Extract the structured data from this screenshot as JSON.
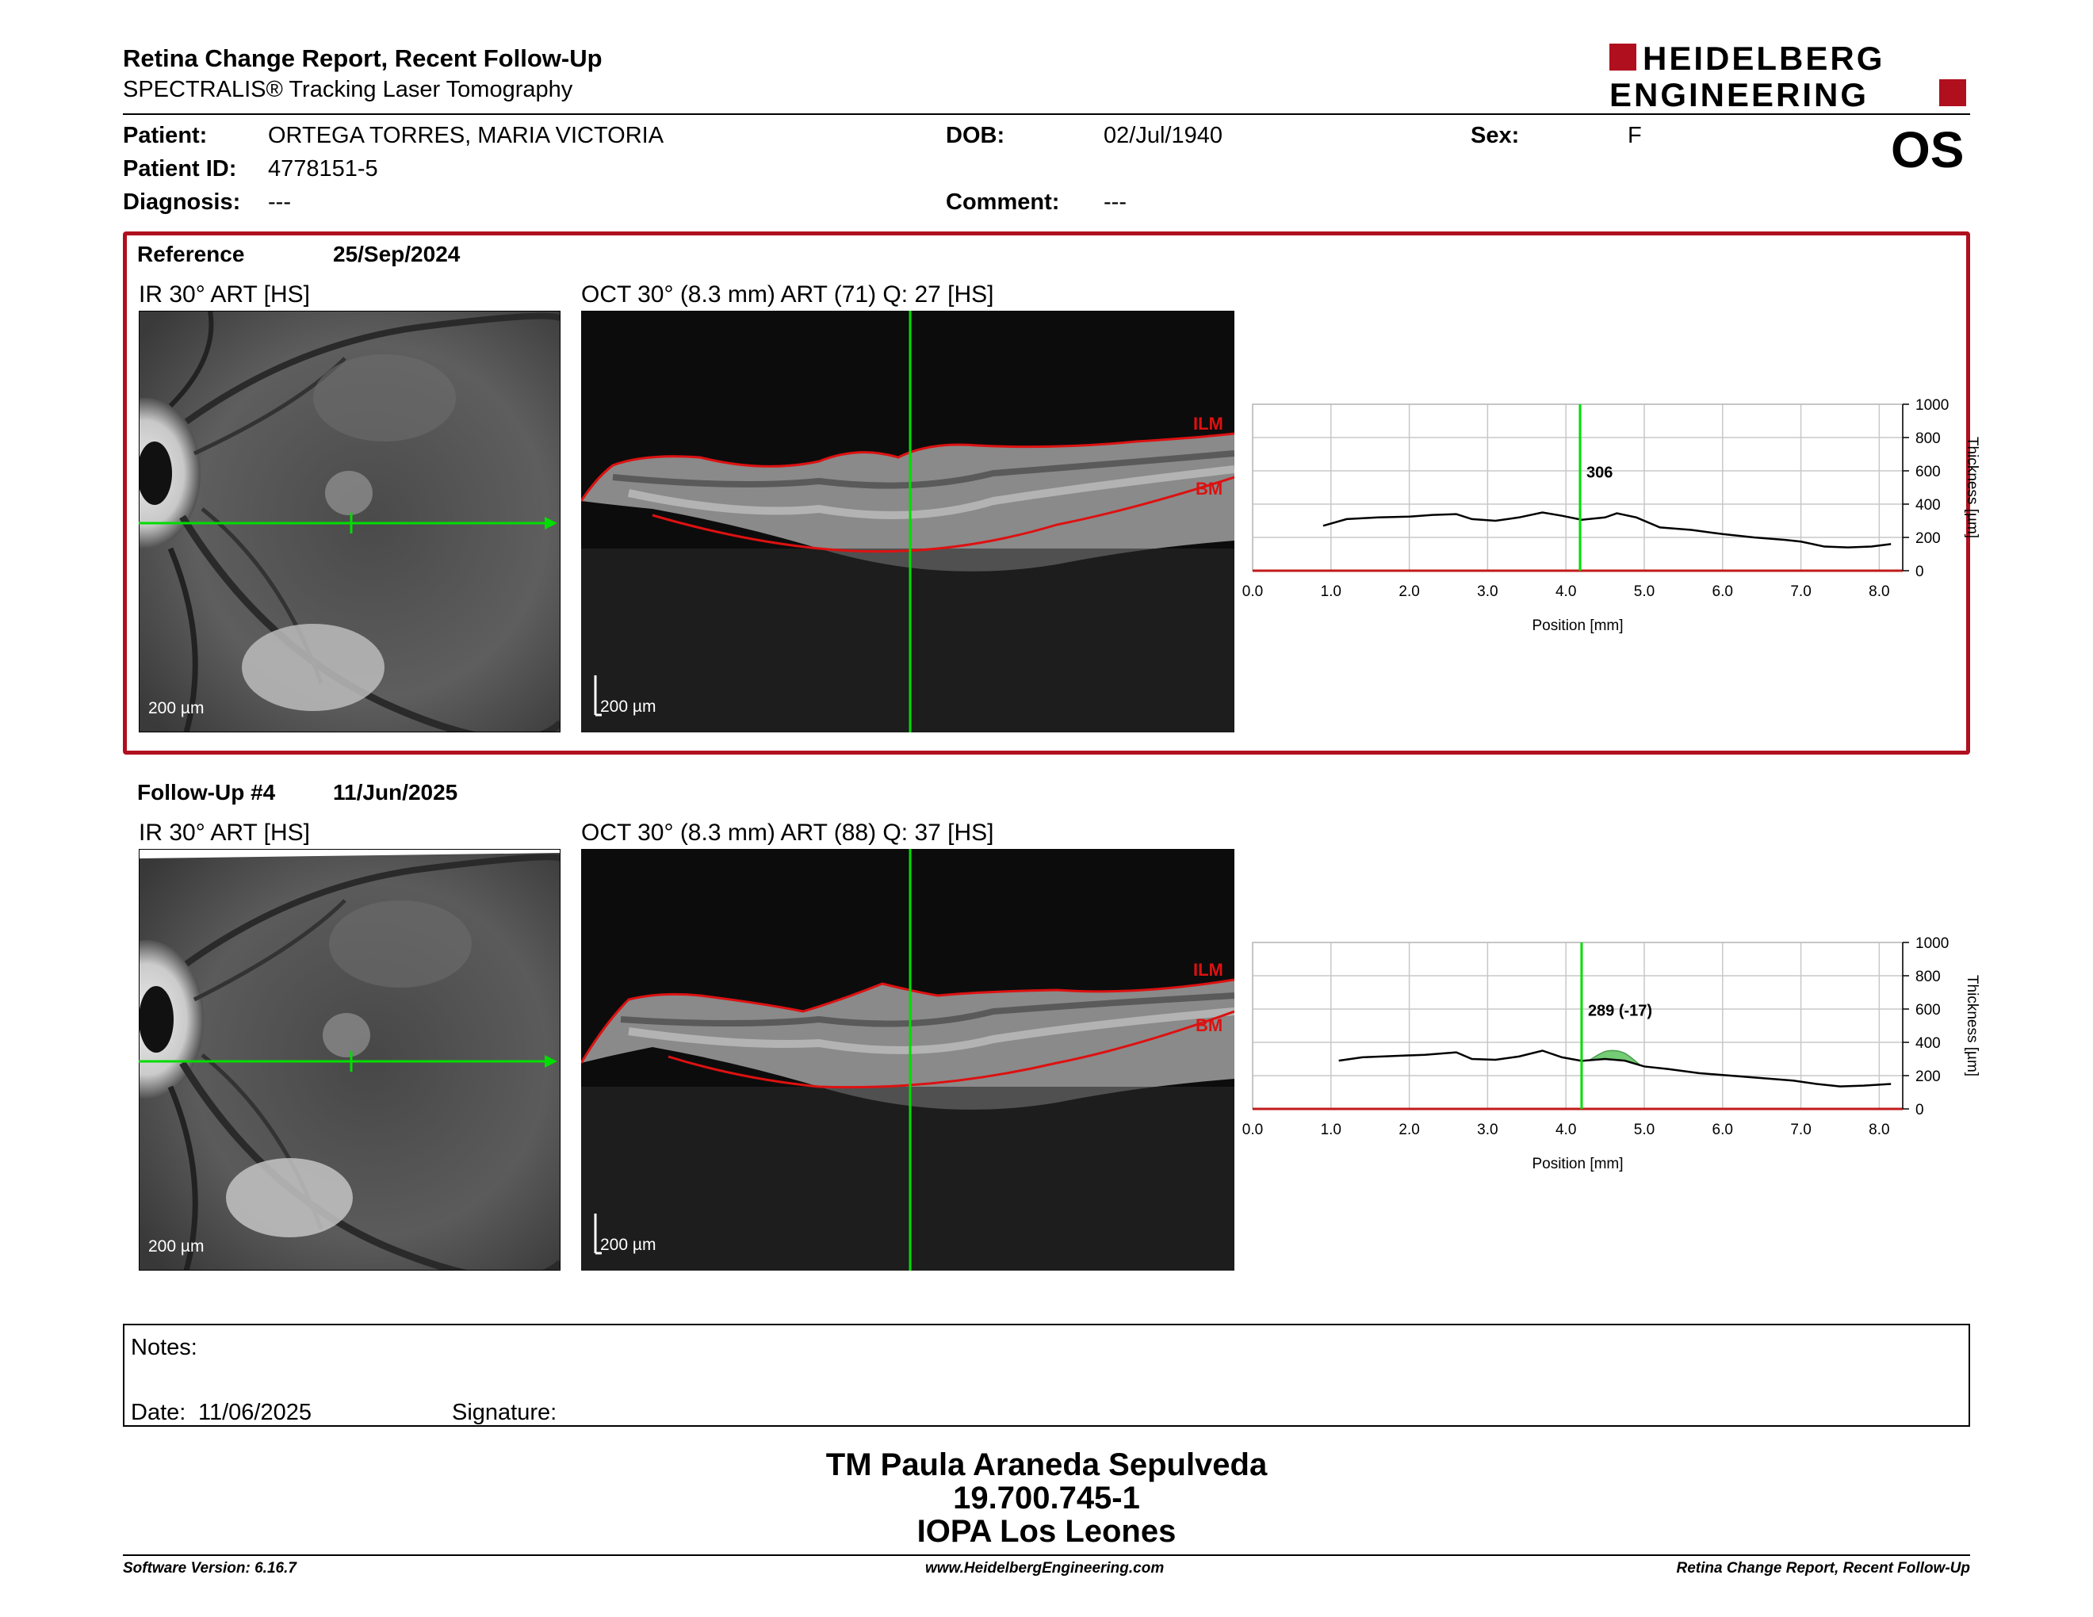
{
  "header": {
    "title": "Retina Change Report, Recent Follow-Up",
    "subtitle": "SPECTRALIS® Tracking Laser Tomography",
    "logo_line1": "HEIDELBERG",
    "logo_line2": "ENGINEERING"
  },
  "patient": {
    "patient_label": "Patient:",
    "patient_name": "ORTEGA TORRES, MARIA VICTORIA",
    "id_label": "Patient ID:",
    "id_value": "4778151-5",
    "diagnosis_label": "Diagnosis:",
    "diagnosis_value": "---",
    "dob_label": "DOB:",
    "dob_value": "02/Jul/1940",
    "comment_label": "Comment:",
    "comment_value": "---",
    "sex_label": "Sex:",
    "sex_value": "F",
    "eye": "OS"
  },
  "reference": {
    "name": "Reference",
    "date": "25/Sep/2024",
    "ir_label": "IR 30° ART [HS]",
    "oct_label": "OCT 30° (8.3 mm) ART (71) Q: 27 [HS]",
    "ir_scale": "200 µm",
    "oct_scale": "200 µm",
    "ilm": "ILM",
    "bm": "BM"
  },
  "followup": {
    "name": "Follow-Up #4",
    "date": "11/Jun/2025",
    "ir_label": "IR 30° ART [HS]",
    "oct_label": "OCT 30° (8.3 mm) ART (88) Q: 37 [HS]",
    "ir_scale": "200 µm",
    "oct_scale": "200 µm",
    "ilm": "ILM",
    "bm": "BM"
  },
  "chart_data": [
    {
      "type": "line",
      "xlabel": "Position [mm]",
      "ylabel": "Thickness [µm]",
      "xlim": [
        0,
        8.3
      ],
      "ylim": [
        0,
        1000
      ],
      "x_ticks": [
        "0.0",
        "1.0",
        "2.0",
        "3.0",
        "4.0",
        "5.0",
        "6.0",
        "7.0",
        "8.0"
      ],
      "y_ticks": [
        "0",
        "200",
        "400",
        "600",
        "800",
        "1000"
      ],
      "grid": true,
      "cursor_x": 4.18,
      "cursor_label": "306",
      "series": [
        {
          "x": [
            0.9,
            1.2,
            1.6,
            2.0,
            2.3,
            2.6,
            2.8,
            3.1,
            3.4,
            3.7,
            3.95,
            4.2,
            4.5,
            4.65,
            4.9,
            5.2,
            5.6,
            6.0,
            6.4,
            6.8,
            7.0,
            7.3,
            7.6,
            7.9,
            8.15
          ],
          "y": [
            270,
            310,
            320,
            325,
            335,
            340,
            310,
            300,
            320,
            350,
            330,
            306,
            320,
            345,
            320,
            260,
            245,
            220,
            200,
            185,
            175,
            145,
            140,
            145,
            160
          ]
        }
      ]
    },
    {
      "type": "line",
      "xlabel": "Position [mm]",
      "ylabel": "Thickness [µm]",
      "xlim": [
        0,
        8.3
      ],
      "ylim": [
        0,
        1000
      ],
      "x_ticks": [
        "0.0",
        "1.0",
        "2.0",
        "3.0",
        "4.0",
        "5.0",
        "6.0",
        "7.0",
        "8.0"
      ],
      "y_ticks": [
        "0",
        "200",
        "400",
        "600",
        "800",
        "1000"
      ],
      "grid": true,
      "cursor_x": 4.2,
      "cursor_label": "289 (-17)",
      "series": [
        {
          "x": [
            1.1,
            1.4,
            1.8,
            2.2,
            2.6,
            2.8,
            3.1,
            3.4,
            3.7,
            3.95,
            4.2,
            4.5,
            4.75,
            5.0,
            5.3,
            5.7,
            6.1,
            6.5,
            6.9,
            7.2,
            7.5,
            7.8,
            8.15
          ],
          "y": [
            290,
            310,
            318,
            325,
            340,
            300,
            295,
            315,
            350,
            310,
            289,
            300,
            290,
            255,
            240,
            215,
            200,
            185,
            170,
            150,
            135,
            140,
            150
          ]
        }
      ],
      "difference_region": {
        "from": 4.3,
        "to": 4.95,
        "color": "#5cc45c"
      }
    }
  ],
  "notes": {
    "label": "Notes:",
    "date_label": "Date:",
    "date_value": "11/06/2025",
    "signature_label": "Signature:"
  },
  "signer": {
    "name": "TM Paula Araneda Sepulveda",
    "id": "19.700.745-1",
    "place": "IOPA Los Leones"
  },
  "footer": {
    "software": "Software Version: 6.16.7",
    "url": "www.HeidelbergEngineering.com",
    "report": "Retina Change Report, Recent Follow-Up"
  },
  "colors": {
    "accent": "#b00f1e",
    "cursor": "#00dd00",
    "layer": "#dd1111"
  }
}
